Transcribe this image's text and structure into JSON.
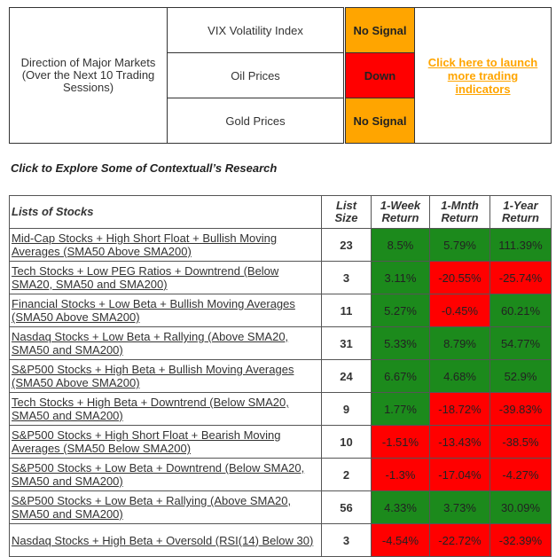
{
  "top": {
    "direction_label": "Direction of Major Markets (Over the Next 10 Trading Sessions)",
    "indicators": [
      {
        "label": "VIX Volatility Index",
        "signal": "No Signal",
        "color": "#ffa500"
      },
      {
        "label": "Oil Prices",
        "signal": "Down",
        "color": "#ff0000"
      },
      {
        "label": "Gold Prices",
        "signal": "No Signal",
        "color": "#ffa500"
      }
    ],
    "link": "Click here to launch more trading indicators"
  },
  "heading": "Click to Explore Some of Contextuall’s Research",
  "table": {
    "headers": [
      "Lists of Stocks",
      "List Size",
      "1-Week Return",
      "1-Mnth Return",
      "1-Year Return"
    ],
    "positive_color": "#1c8a1c",
    "negative_color": "#ff0000",
    "rows": [
      [
        "Mid-Cap Stocks + High Short Float + Bullish Moving Averages (SMA50 Above SMA200)",
        23,
        "8.5%",
        "5.79%",
        "111.39%"
      ],
      [
        "Tech Stocks + Low PEG Ratios + Downtrend (Below SMA20, SMA50 and SMA200)",
        3,
        "3.11%",
        "-20.55%",
        "-25.74%"
      ],
      [
        "Financial Stocks + Low Beta + Bullish Moving Averages (SMA50 Above SMA200)",
        11,
        "5.27%",
        "-0.45%",
        "60.21%"
      ],
      [
        "Nasdaq Stocks + Low Beta + Rallying (Above SMA20, SMA50 and SMA200)",
        31,
        "5.33%",
        "8.79%",
        "54.77%"
      ],
      [
        "S&P500 Stocks + High Beta + Bullish Moving Averages (SMA50 Above SMA200)",
        24,
        "6.67%",
        "4.68%",
        "52.9%"
      ],
      [
        "Tech Stocks + High Beta + Downtrend (Below SMA20, SMA50 and SMA200)",
        9,
        "1.77%",
        "-18.72%",
        "-39.83%"
      ],
      [
        "S&P500 Stocks + High Short Float + Bearish Moving Averages (SMA50 Below SMA200)",
        10,
        "-1.51%",
        "-13.43%",
        "-38.5%"
      ],
      [
        "S&P500 Stocks + Low Beta + Downtrend (Below SMA20, SMA50 and SMA200)",
        2,
        "-1.3%",
        "-17.04%",
        "-4.27%"
      ],
      [
        "S&P500 Stocks + Low Beta + Rallying (Above SMA20, SMA50 and SMA200)",
        56,
        "4.33%",
        "3.73%",
        "30.09%"
      ],
      [
        "Nasdaq Stocks + High Beta + Oversold (RSI(14) Below 30)",
        3,
        "-4.54%",
        "-22.72%",
        "-32.39%"
      ]
    ]
  }
}
